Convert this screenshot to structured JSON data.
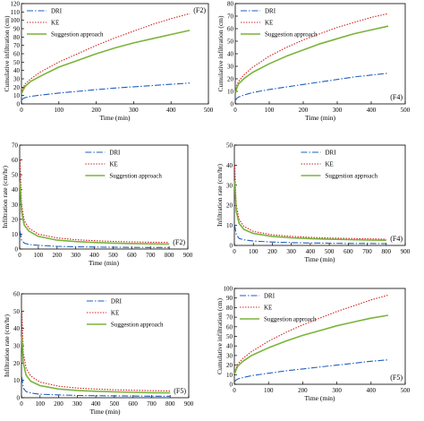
{
  "legend_labels": [
    "DRI",
    "KE",
    "Suggestion approach"
  ],
  "colors": {
    "DRI": "#1f5fbf",
    "KE": "#d42020",
    "Suggestion approach": "#7bb33a",
    "frame": "#000000"
  },
  "chart_data": [
    {
      "id": "p1",
      "type": "line",
      "tag": "(F2)",
      "ylabel": "Cumulative infiltration (cm)",
      "xlabel": "Time (min)",
      "xlim": [
        0,
        500
      ],
      "ylim": [
        0,
        120
      ],
      "xticks": [
        0,
        100,
        200,
        300,
        400,
        500
      ],
      "yticks": [
        0,
        10,
        20,
        30,
        40,
        50,
        60,
        70,
        80,
        90,
        100,
        110,
        120
      ],
      "legend_position": "top-left",
      "x": [
        1,
        5,
        10,
        25,
        50,
        100,
        150,
        200,
        250,
        300,
        350,
        400,
        450
      ],
      "series": [
        {
          "name": "DRI",
          "values": [
            5,
            6.5,
            7.5,
            9,
            10.5,
            13,
            15,
            17,
            19,
            20.5,
            22,
            23.5,
            25
          ]
        },
        {
          "name": "KE",
          "values": [
            15,
            20,
            24,
            30,
            38,
            50,
            60,
            70,
            79,
            87,
            95,
            102,
            108
          ]
        },
        {
          "name": "Suggestion approach",
          "values": [
            13,
            17,
            21,
            27,
            33,
            44,
            52,
            60,
            67,
            73,
            78,
            83,
            88
          ]
        }
      ]
    },
    {
      "id": "p2",
      "type": "line",
      "tag": "(F4)",
      "ylabel": "Cumulative infiltration (cm)",
      "xlabel": "Time (min)",
      "xlim": [
        0,
        500
      ],
      "ylim": [
        0,
        80
      ],
      "xticks": [
        0,
        100,
        200,
        300,
        400,
        500
      ],
      "yticks": [
        0,
        10,
        20,
        30,
        40,
        50,
        60,
        70,
        80
      ],
      "legend_position": "top-left",
      "x": [
        1,
        5,
        10,
        25,
        50,
        100,
        150,
        200,
        250,
        300,
        350,
        400,
        450
      ],
      "series": [
        {
          "name": "DRI",
          "values": [
            3,
            4.5,
            5.5,
            7,
            9,
            11.5,
            13.5,
            15.5,
            17.5,
            19.5,
            21.5,
            23,
            24.5
          ]
        },
        {
          "name": "KE",
          "values": [
            10,
            15,
            18,
            23,
            29,
            38,
            45,
            51,
            56,
            61,
            65,
            69,
            72
          ]
        },
        {
          "name": "Suggestion approach",
          "values": [
            9,
            13,
            16,
            20,
            25,
            32,
            38,
            43,
            48,
            52,
            56,
            59,
            62
          ]
        }
      ]
    },
    {
      "id": "p3",
      "type": "line",
      "tag": "(F2)",
      "ylabel": "Infiltration rate (cm/hr)",
      "xlabel": "Time (min)",
      "xlim": [
        0,
        900
      ],
      "ylim": [
        0,
        70
      ],
      "xticks": [
        0,
        100,
        200,
        300,
        400,
        500,
        600,
        700,
        800,
        900
      ],
      "yticks": [
        0,
        10,
        20,
        30,
        40,
        50,
        60,
        70
      ],
      "legend_position": "top-right",
      "x": [
        2,
        10,
        25,
        50,
        100,
        200,
        300,
        400,
        500,
        600,
        700,
        800
      ],
      "series": [
        {
          "name": "DRI",
          "values": [
            12,
            6,
            4,
            3,
            2.5,
            1.8,
            1.5,
            1.3,
            1.2,
            1.1,
            1.0,
            1.0
          ]
        },
        {
          "name": "KE",
          "values": [
            60,
            30,
            19,
            14,
            10,
            7.5,
            6.3,
            5.6,
            5.1,
            4.8,
            4.6,
            4.4
          ]
        },
        {
          "name": "Suggestion approach",
          "values": [
            45,
            25,
            16,
            12,
            8.5,
            6.0,
            5.0,
            4.4,
            4.0,
            3.7,
            3.5,
            3.3
          ]
        }
      ]
    },
    {
      "id": "p4",
      "type": "line",
      "tag": "(F4)",
      "ylabel": "Infiltration rate (cm/hr)",
      "xlabel": "Time (min)",
      "xlim": [
        0,
        900
      ],
      "ylim": [
        0,
        50
      ],
      "xticks": [
        0,
        100,
        200,
        300,
        400,
        500,
        600,
        700,
        800,
        900
      ],
      "yticks": [
        0,
        10,
        20,
        30,
        40,
        50
      ],
      "legend_position": "top-right",
      "x": [
        2,
        10,
        25,
        50,
        100,
        200,
        300,
        400,
        500,
        600,
        700,
        800
      ],
      "series": [
        {
          "name": "DRI",
          "values": [
            10,
            5.5,
            3.5,
            2.8,
            2.2,
            1.7,
            1.4,
            1.2,
            1.1,
            1.0,
            1.0,
            0.9
          ]
        },
        {
          "name": "KE",
          "values": [
            40,
            20,
            13,
            9.5,
            7.0,
            5.3,
            4.5,
            4.0,
            3.7,
            3.5,
            3.3,
            3.1
          ]
        },
        {
          "name": "Suggestion approach",
          "values": [
            32,
            17,
            11,
            8.0,
            6.0,
            4.5,
            3.8,
            3.4,
            3.1,
            2.9,
            2.7,
            2.6
          ]
        }
      ]
    },
    {
      "id": "p5",
      "type": "line",
      "tag": "(F5)",
      "ylabel": "Infiltration rate (cm/hr)",
      "xlabel": "Time (min)",
      "xlim": [
        0,
        900
      ],
      "ylim": [
        0,
        60
      ],
      "xticks": [
        0,
        100,
        200,
        300,
        400,
        500,
        600,
        700,
        800,
        900
      ],
      "yticks": [
        0,
        10,
        20,
        30,
        40,
        50,
        60
      ],
      "legend_position": "top-right",
      "x": [
        2,
        10,
        25,
        50,
        100,
        200,
        300,
        400,
        500,
        600,
        700,
        800
      ],
      "series": [
        {
          "name": "DRI",
          "values": [
            12,
            5.5,
            3.5,
            2.7,
            2.0,
            1.6,
            1.3,
            1.2,
            1.1,
            1.0,
            0.9,
            0.9
          ]
        },
        {
          "name": "KE",
          "values": [
            50,
            26,
            17,
            12.5,
            9.0,
            6.6,
            5.6,
            5.0,
            4.6,
            4.3,
            4.1,
            3.9
          ]
        },
        {
          "name": "Suggestion approach",
          "values": [
            35,
            20,
            13,
            9.5,
            7.0,
            5.0,
            4.2,
            3.7,
            3.4,
            3.1,
            2.9,
            2.8
          ]
        }
      ]
    },
    {
      "id": "p6",
      "type": "line",
      "tag": "(F5)",
      "ylabel": "Cumulative infiltration (cm)",
      "xlabel": "Time (min)",
      "xlim": [
        0,
        500
      ],
      "ylim": [
        0,
        100
      ],
      "xticks": [
        0,
        100,
        200,
        300,
        400,
        500
      ],
      "yticks": [
        0,
        10,
        20,
        30,
        40,
        50,
        60,
        70,
        80,
        90,
        100
      ],
      "legend_position": "top-left",
      "x": [
        1,
        5,
        10,
        25,
        50,
        100,
        150,
        200,
        250,
        300,
        350,
        400,
        450
      ],
      "series": [
        {
          "name": "DRI",
          "values": [
            3,
            4.5,
            5.5,
            7,
            9,
            11.5,
            14,
            16,
            18,
            20,
            22,
            24,
            25.5
          ]
        },
        {
          "name": "KE",
          "values": [
            12,
            17,
            21,
            27,
            34,
            45,
            54,
            62,
            69,
            76,
            82,
            88,
            93
          ]
        },
        {
          "name": "Suggestion approach",
          "values": [
            11,
            15,
            19,
            24,
            30,
            38,
            45,
            51,
            56,
            61,
            65,
            69,
            72
          ]
        }
      ]
    }
  ]
}
